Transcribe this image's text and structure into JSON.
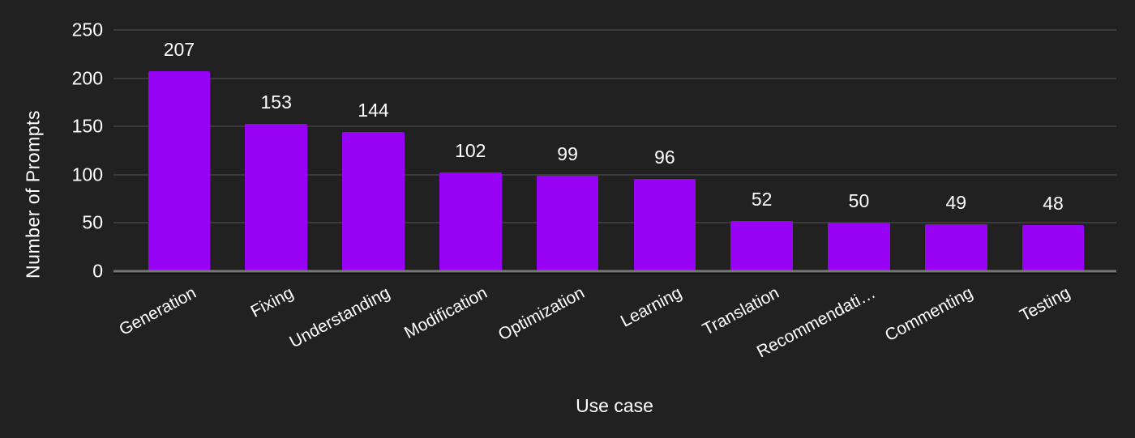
{
  "chart_data": {
    "type": "bar",
    "title": "",
    "xlabel": "Use case",
    "ylabel": "Number of Prompts",
    "categories": [
      "Generation",
      "Fixing",
      "Understanding",
      "Modification",
      "Optimization",
      "Learning",
      "Translation",
      "Recommendati…",
      "Commenting",
      "Testing"
    ],
    "values": [
      207,
      153,
      144,
      102,
      99,
      96,
      52,
      50,
      49,
      48
    ],
    "ylim": [
      0,
      250
    ],
    "yticks": [
      0,
      50,
      100,
      150,
      200,
      250
    ],
    "grid": true,
    "legend": false,
    "bar_label_position": "above",
    "category_label_rotation_deg": -28,
    "colors": {
      "bar": "#9803f5",
      "background": "#212121",
      "text": "#ffffff",
      "gridline": "#3a3a3a",
      "axis_line": "#777777"
    }
  }
}
